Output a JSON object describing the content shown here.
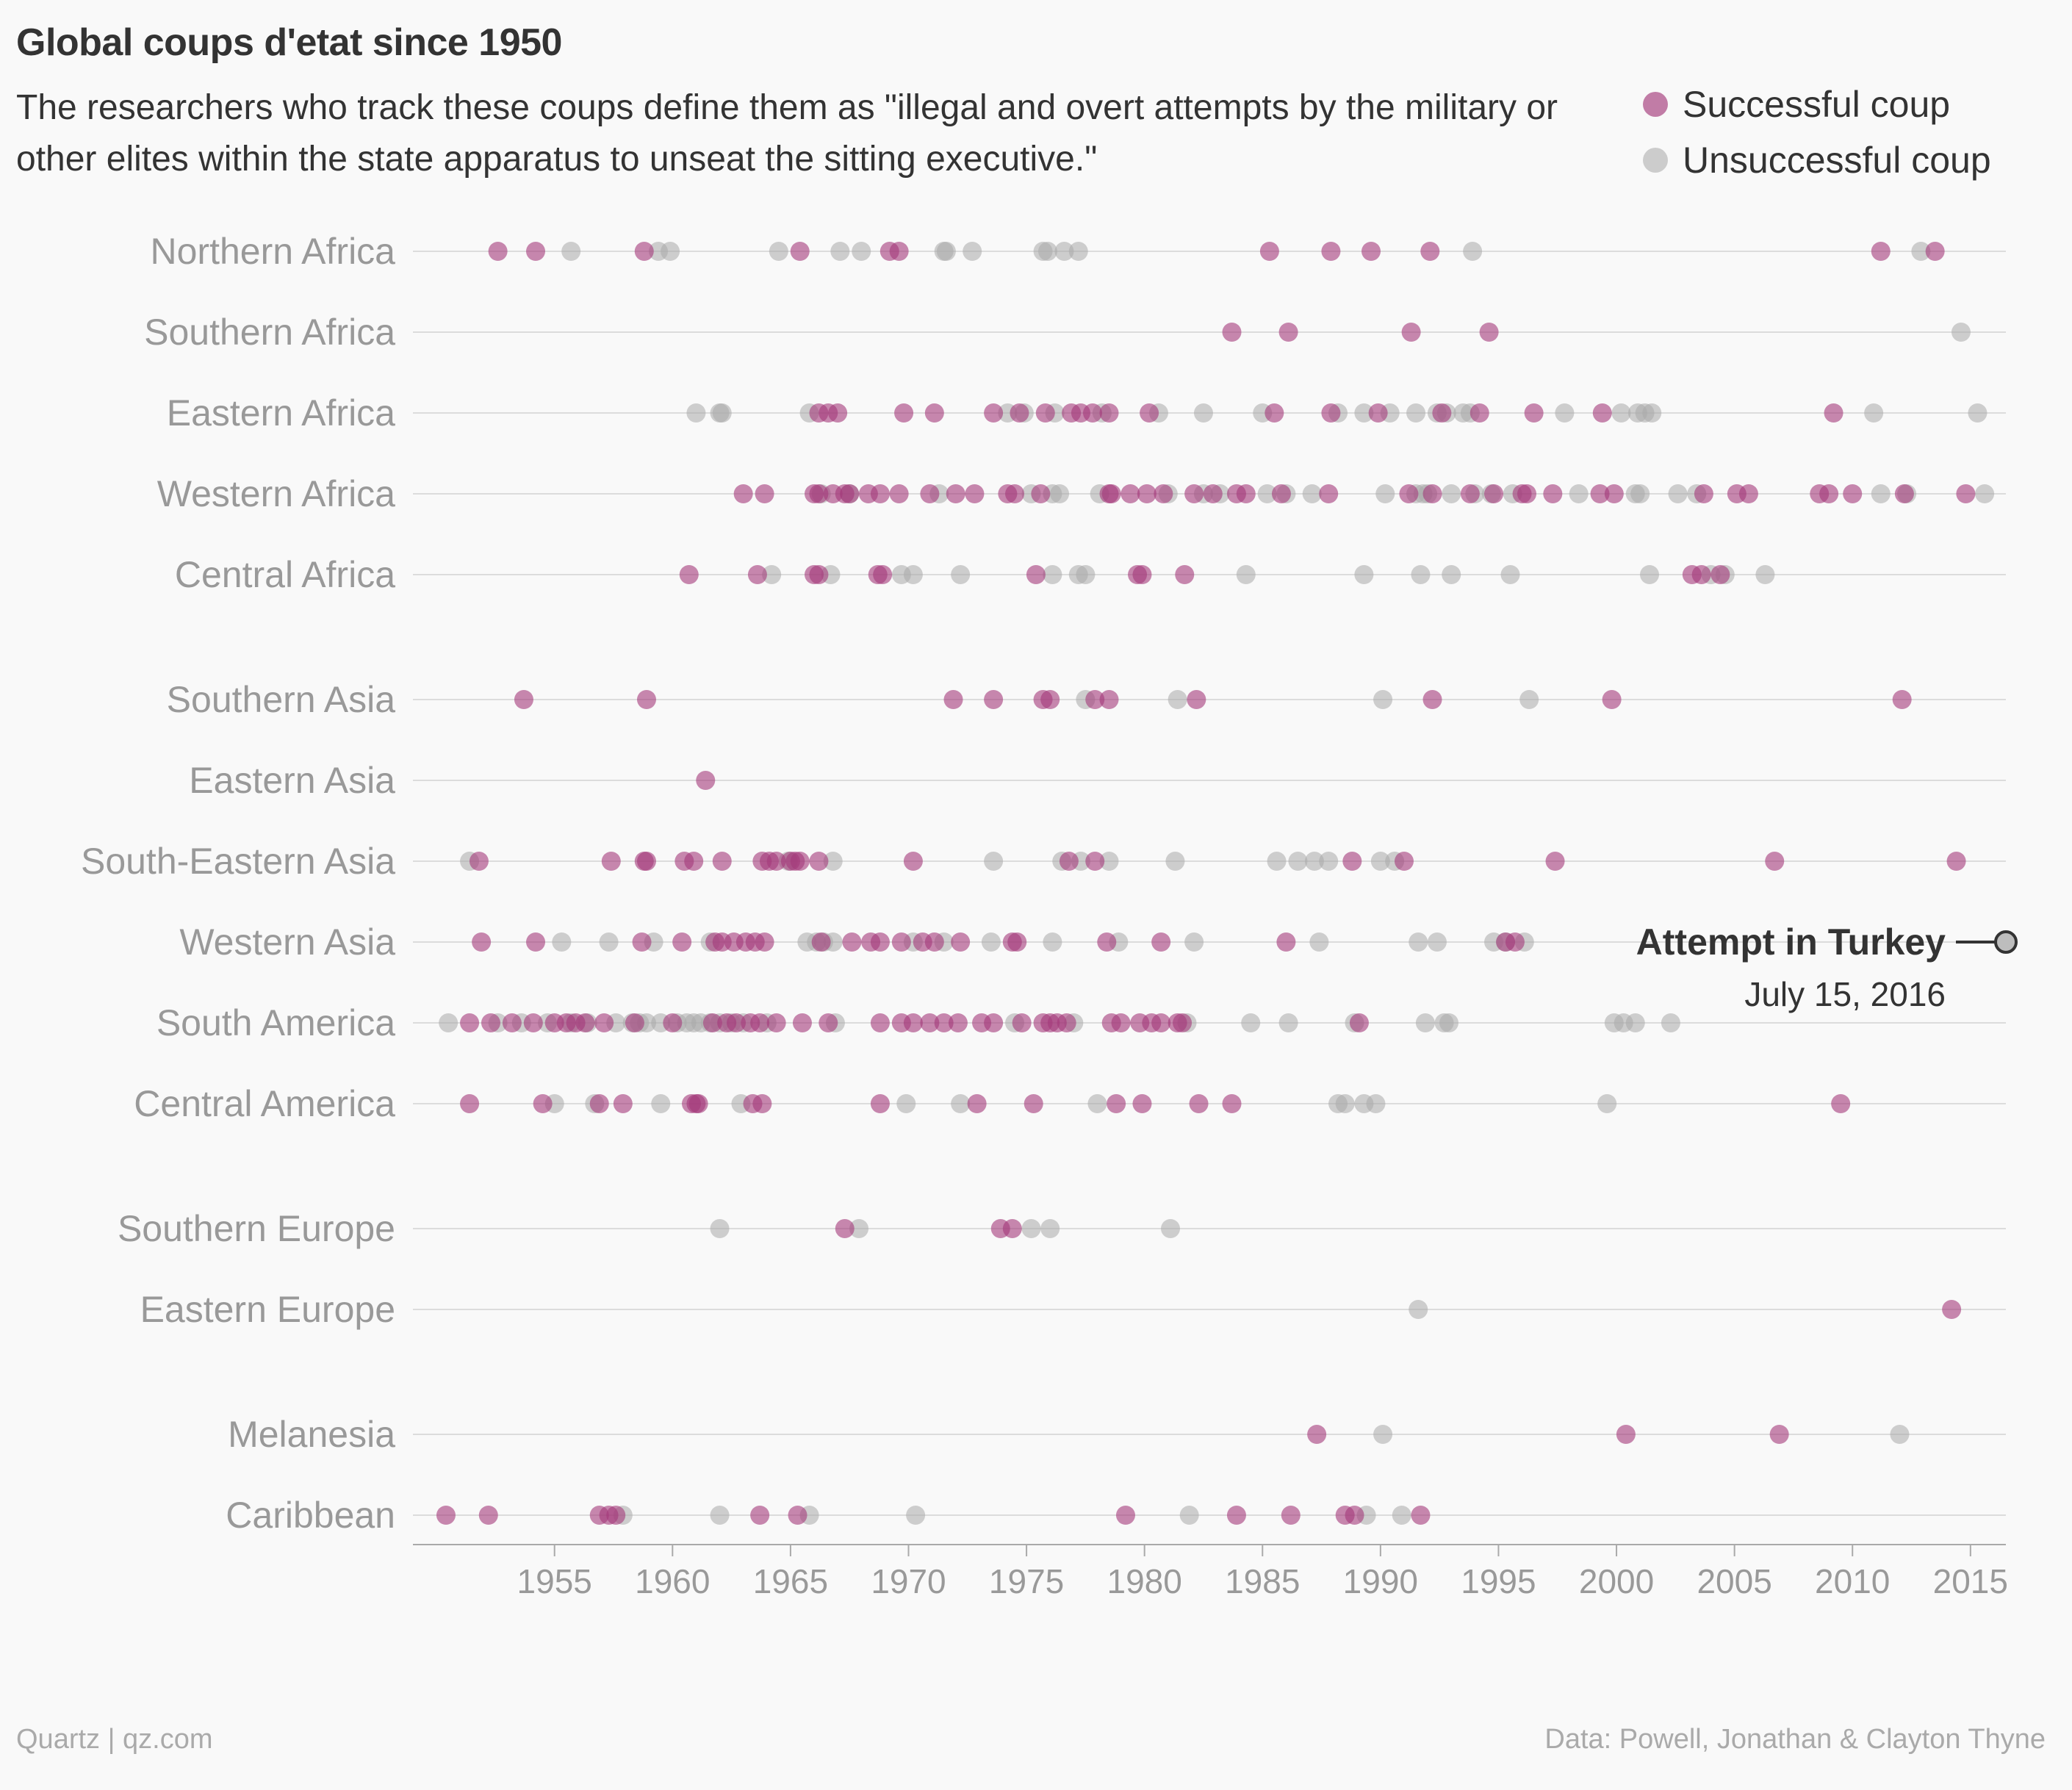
{
  "title": "Global coups d'etat since 1950",
  "subtitle": "The researchers who track these coups define them as \"illegal and overt attempts by the military or other elites within the state apparatus to unseat the sitting executive.\"",
  "legend": [
    {
      "label": "Successful coup",
      "color": "#a3397a"
    },
    {
      "label": "Unsuccessful coup",
      "color": "#b4b4b4"
    }
  ],
  "footer": {
    "left": "Quartz | qz.com",
    "right": "Data: Powell, Jonathan & Clayton Thyne"
  },
  "chart_data": {
    "type": "scatter",
    "xlim": [
      1949,
      2016.5
    ],
    "xticks": [
      1955,
      1960,
      1965,
      1970,
      1975,
      1980,
      1985,
      1990,
      1995,
      2000,
      2005,
      2010,
      2015
    ],
    "grid": true,
    "colors": {
      "successful": "#a3397a",
      "unsuccessful": "#a9a9a9"
    },
    "annotation": {
      "label": "Attempt in Turkey",
      "date": "July 15, 2016",
      "region": "Western Asia",
      "x": 2016.5
    },
    "groups": [
      {
        "regions": [
          {
            "name": "Northern Africa",
            "successful": [
              1952.6,
              1954.2,
              1958.8,
              1965.4,
              1969.2,
              1969.6,
              1985.3,
              1987.9,
              1989.6,
              1992.1,
              2011.2,
              2013.5
            ],
            "unsuccessful": [
              1955.7,
              1959.4,
              1959.9,
              1964.5,
              1967.1,
              1968.0,
              1971.5,
              1971.6,
              1972.7,
              1975.7,
              1975.9,
              1976.6,
              1977.2,
              1993.9,
              2012.9
            ]
          },
          {
            "name": "Southern Africa",
            "successful": [
              1983.7,
              1986.1,
              1991.3,
              1994.6
            ],
            "unsuccessful": [
              2014.6
            ]
          },
          {
            "name": "Eastern Africa",
            "successful": [
              1966.2,
              1966.6,
              1967.0,
              1969.8,
              1971.1,
              1973.6,
              1974.7,
              1975.8,
              1976.9,
              1977.3,
              1977.8,
              1978.5,
              1980.2,
              1985.5,
              1987.9,
              1989.9,
              1992.6,
              1994.2,
              1996.5,
              1999.4,
              2009.2
            ],
            "unsuccessful": [
              1961.0,
              1962.0,
              1962.1,
              1965.8,
              1974.2,
              1974.9,
              1976.2,
              1978.2,
              1980.6,
              1982.5,
              1985.0,
              1988.2,
              1989.3,
              1990.4,
              1991.5,
              1992.4,
              1992.8,
              1993.5,
              1993.8,
              1997.8,
              2000.2,
              2000.9,
              2001.2,
              2001.5,
              2010.9,
              2015.3
            ]
          },
          {
            "name": "Western Africa",
            "successful": [
              1963.0,
              1963.9,
              1966.0,
              1966.2,
              1966.8,
              1967.3,
              1967.5,
              1968.3,
              1968.8,
              1969.6,
              1970.9,
              1972.0,
              1972.8,
              1974.2,
              1974.5,
              1975.6,
              1978.5,
              1978.6,
              1979.4,
              1980.1,
              1980.8,
              1982.1,
              1982.9,
              1983.9,
              1984.3,
              1985.8,
              1987.8,
              1991.2,
              1992.2,
              1993.8,
              1994.8,
              1996.0,
              1996.2,
              1997.3,
              1999.3,
              1999.9,
              2003.7,
              2005.1,
              2005.6,
              2008.6,
              2009.0,
              2010.0,
              2012.2,
              2014.8
            ],
            "unsuccessful": [
              1966.3,
              1967.5,
              1971.3,
              1975.2,
              1976.1,
              1976.4,
              1978.1,
              1981.0,
              1982.5,
              1983.2,
              1985.2,
              1986.0,
              1987.1,
              1990.2,
              1991.5,
              1991.8,
              1992.0,
              1993.0,
              1994.0,
              1994.7,
              1995.6,
              1998.4,
              2000.8,
              2001.0,
              2002.6,
              2003.4,
              2011.2,
              2012.3,
              2015.6
            ]
          },
          {
            "name": "Central Africa",
            "successful": [
              1960.7,
              1963.6,
              1966.0,
              1966.2,
              1968.7,
              1968.9,
              1975.4,
              1979.7,
              1979.9,
              1981.7,
              2003.2,
              2003.6,
              2004.4
            ],
            "unsuccessful": [
              1964.2,
              1966.7,
              1969.7,
              1970.2,
              1972.2,
              1976.1,
              1977.2,
              1977.5,
              1984.3,
              1989.3,
              1991.7,
              1993.0,
              1995.5,
              2001.4,
              2004.0,
              2004.6,
              2006.3
            ]
          }
        ]
      },
      {
        "regions": [
          {
            "name": "Southern Asia",
            "successful": [
              1953.7,
              1958.9,
              1971.9,
              1973.6,
              1975.7,
              1976.0,
              1977.9,
              1978.5,
              1982.2,
              1992.2,
              1999.8,
              2012.1
            ],
            "unsuccessful": [
              1977.5,
              1981.4,
              1990.1,
              1996.3
            ]
          },
          {
            "name": "Eastern Asia",
            "successful": [
              1961.4
            ],
            "unsuccessful": []
          },
          {
            "name": "South-Eastern Asia",
            "successful": [
              1951.8,
              1957.4,
              1958.8,
              1958.9,
              1960.5,
              1960.9,
              1962.1,
              1963.8,
              1964.1,
              1964.4,
              1965.0,
              1965.2,
              1965.4,
              1966.2,
              1970.2,
              1976.8,
              1977.9,
              1988.8,
              1991.0,
              1997.4,
              2006.7,
              2014.4
            ],
            "unsuccessful": [
              1951.4,
              1964.9,
              1966.8,
              1973.6,
              1976.5,
              1977.3,
              1978.5,
              1981.3,
              1985.6,
              1986.5,
              1987.2,
              1987.8,
              1990.0,
              1990.6
            ]
          },
          {
            "name": "Western Asia",
            "successful": [
              1951.9,
              1954.2,
              1958.7,
              1960.4,
              1961.8,
              1962.1,
              1962.6,
              1963.1,
              1963.5,
              1963.9,
              1966.3,
              1967.6,
              1968.4,
              1968.8,
              1969.7,
              1970.6,
              1971.1,
              1972.2,
              1974.4,
              1974.6,
              1978.4,
              1980.7,
              1986.0,
              1995.3,
              1995.7
            ],
            "unsuccessful": [
              1955.3,
              1957.3,
              1959.2,
              1961.6,
              1965.7,
              1966.1,
              1966.4,
              1966.8,
              1970.2,
              1971.5,
              1973.5,
              1976.1,
              1978.9,
              1982.1,
              1987.4,
              1991.6,
              1992.4,
              1994.8,
              1995.3,
              1996.1
            ]
          },
          {
            "name": "South America",
            "successful": [
              1951.4,
              1952.3,
              1953.2,
              1954.1,
              1955.0,
              1955.5,
              1955.9,
              1956.3,
              1957.1,
              1958.4,
              1960.0,
              1961.7,
              1962.3,
              1962.7,
              1963.3,
              1963.7,
              1964.4,
              1965.5,
              1966.6,
              1968.8,
              1969.7,
              1970.2,
              1970.9,
              1971.5,
              1972.1,
              1973.1,
              1973.6,
              1974.8,
              1975.7,
              1976.0,
              1976.3,
              1976.7,
              1978.6,
              1979.0,
              1979.8,
              1980.3,
              1980.7,
              1981.4,
              1981.6,
              1989.1
            ],
            "unsuccessful": [
              1950.5,
              1952.6,
              1953.6,
              1954.7,
              1955.7,
              1956.4,
              1957.6,
              1958.3,
              1958.6,
              1958.9,
              1959.5,
              1960.2,
              1960.6,
              1960.9,
              1961.2,
              1961.6,
              1962.0,
              1962.5,
              1963.0,
              1964.0,
              1966.9,
              1974.5,
              1977.0,
              1981.8,
              1984.5,
              1986.1,
              1988.9,
              1991.9,
              1992.7,
              1992.9,
              1999.9,
              2000.3,
              2000.8,
              2002.3
            ]
          },
          {
            "name": "Central America",
            "successful": [
              1951.4,
              1954.5,
              1956.9,
              1957.9,
              1960.8,
              1961.0,
              1961.1,
              1963.4,
              1963.8,
              1968.8,
              1972.9,
              1975.3,
              1978.8,
              1979.9,
              1982.3,
              1983.7,
              2009.5
            ],
            "unsuccessful": [
              1955.0,
              1956.7,
              1959.5,
              1962.9,
              1969.9,
              1972.2,
              1978.0,
              1988.2,
              1988.5,
              1989.3,
              1989.8,
              1999.6
            ]
          }
        ]
      },
      {
        "regions": [
          {
            "name": "Southern Europe",
            "successful": [
              1967.3,
              1973.9,
              1974.4
            ],
            "unsuccessful": [
              1962.0,
              1967.9,
              1975.2,
              1976.0,
              1981.1
            ]
          },
          {
            "name": "Eastern Europe",
            "successful": [
              2014.2
            ],
            "unsuccessful": [
              1991.6
            ]
          }
        ]
      },
      {
        "regions": [
          {
            "name": "Melanesia",
            "successful": [
              1987.3,
              2000.4,
              2006.9
            ],
            "unsuccessful": [
              1990.1,
              2012.0
            ]
          },
          {
            "name": "Caribbean",
            "successful": [
              1950.4,
              1952.2,
              1956.9,
              1957.3,
              1957.6,
              1963.7,
              1965.3,
              1979.2,
              1983.9,
              1986.2,
              1988.5,
              1988.9,
              1991.7
            ],
            "unsuccessful": [
              1957.9,
              1962.0,
              1965.8,
              1970.3,
              1981.9,
              1989.4,
              1990.9
            ]
          }
        ]
      }
    ]
  }
}
